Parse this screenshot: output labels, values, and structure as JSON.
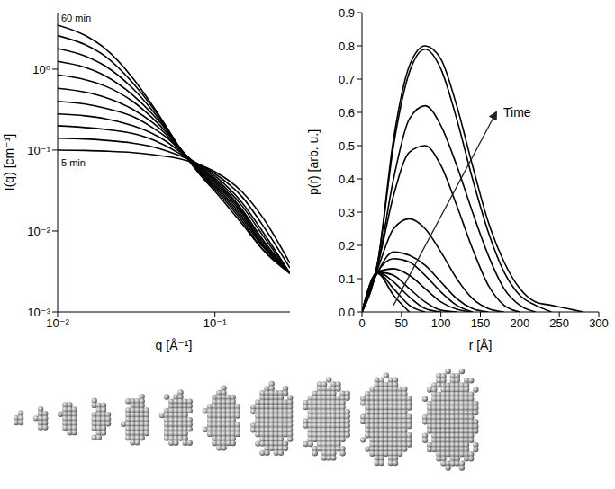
{
  "chart_data": [
    {
      "type": "line",
      "log": true,
      "x_label": "q [Å⁻¹]",
      "y_label": "I(q) [cm⁻¹]",
      "color": "#000000",
      "x": [
        0.01,
        0.015,
        0.02,
        0.03,
        0.04,
        0.05,
        0.06,
        0.08,
        0.1,
        0.15,
        0.2,
        0.3
      ],
      "xlim": [
        0.01,
        0.3
      ],
      "ylim": [
        0.001,
        5
      ],
      "xticks": [
        {
          "value": 0.01,
          "label": "10⁻²"
        },
        {
          "value": 0.1,
          "label": "10⁻¹"
        }
      ],
      "yticks": [
        {
          "value": 0.001,
          "label": "10⁻³"
        },
        {
          "value": 0.01,
          "label": "10⁻²"
        },
        {
          "value": 0.1,
          "label": "10⁻¹"
        },
        {
          "value": 1,
          "label": "10⁰"
        }
      ],
      "series": [
        {
          "name": "5 min",
          "values": [
            0.1,
            0.099,
            0.097,
            0.093,
            0.088,
            0.083,
            0.078,
            0.066,
            0.054,
            0.03,
            0.015,
            0.004
          ]
        },
        {
          "values": [
            0.14,
            0.137,
            0.132,
            0.122,
            0.11,
            0.097,
            0.085,
            0.066,
            0.051,
            0.026,
            0.012,
            0.0035
          ]
        },
        {
          "values": [
            0.2,
            0.19,
            0.18,
            0.16,
            0.135,
            0.11,
            0.09,
            0.065,
            0.048,
            0.022,
            0.01,
            0.003
          ]
        },
        {
          "values": [
            0.28,
            0.265,
            0.245,
            0.2,
            0.16,
            0.125,
            0.095,
            0.063,
            0.045,
            0.02,
            0.009,
            0.003
          ]
        },
        {
          "values": [
            0.4,
            0.37,
            0.33,
            0.26,
            0.19,
            0.14,
            0.1,
            0.062,
            0.043,
            0.018,
            0.008,
            0.003
          ]
        },
        {
          "values": [
            0.58,
            0.52,
            0.45,
            0.32,
            0.22,
            0.15,
            0.1,
            0.06,
            0.041,
            0.017,
            0.0075,
            0.003
          ]
        },
        {
          "values": [
            0.85,
            0.74,
            0.62,
            0.4,
            0.25,
            0.16,
            0.105,
            0.058,
            0.039,
            0.016,
            0.007,
            0.003
          ]
        },
        {
          "values": [
            1.25,
            1.05,
            0.83,
            0.48,
            0.28,
            0.17,
            0.105,
            0.056,
            0.037,
            0.015,
            0.0068,
            0.003
          ]
        },
        {
          "values": [
            1.8,
            1.45,
            1.1,
            0.58,
            0.31,
            0.175,
            0.105,
            0.054,
            0.035,
            0.014,
            0.0065,
            0.003
          ]
        },
        {
          "values": [
            2.6,
            2.0,
            1.45,
            0.68,
            0.34,
            0.18,
            0.105,
            0.052,
            0.033,
            0.013,
            0.006,
            0.003
          ]
        },
        {
          "name": "60 min",
          "values": [
            3.5,
            2.6,
            1.8,
            0.78,
            0.36,
            0.185,
            0.105,
            0.05,
            0.031,
            0.012,
            0.006,
            0.003
          ]
        }
      ]
    },
    {
      "type": "line",
      "x_label": "r [Å]",
      "y_label": "p(r) [arb. u.]",
      "color": "#000000",
      "x": [
        0,
        20,
        40,
        60,
        80,
        100,
        120,
        140,
        160,
        180,
        200,
        220,
        240,
        260,
        280
      ],
      "xlim": [
        0,
        300
      ],
      "ylim": [
        0,
        0.9
      ],
      "xticks": [
        0,
        50,
        100,
        150,
        200,
        250,
        300
      ],
      "yticks": [
        {
          "value": 0,
          "label": "0.0"
        },
        0.1,
        0.2,
        0.3,
        0.4,
        0.5,
        0.6,
        0.7,
        0.8,
        0.9
      ],
      "annotations": [
        {
          "text": "Time",
          "from": [
            40,
            0.02
          ],
          "to": [
            170,
            0.6
          ]
        }
      ],
      "series": [
        {
          "values": [
            0,
            0.115,
            0.05,
            0,
            null,
            null,
            null,
            null,
            null,
            null,
            null,
            null,
            null,
            null,
            null
          ]
        },
        {
          "values": [
            0,
            0.118,
            0.07,
            0.02,
            0,
            null,
            null,
            null,
            null,
            null,
            null,
            null,
            null,
            null,
            null
          ]
        },
        {
          "values": [
            0,
            0.12,
            0.09,
            0.045,
            0.01,
            0,
            null,
            null,
            null,
            null,
            null,
            null,
            null,
            null,
            null
          ]
        },
        {
          "values": [
            0,
            0.12,
            0.11,
            0.07,
            0.03,
            0.005,
            0,
            null,
            null,
            null,
            null,
            null,
            null,
            null,
            null
          ]
        },
        {
          "values": [
            0,
            0.12,
            0.13,
            0.11,
            0.07,
            0.03,
            0.008,
            0,
            null,
            null,
            null,
            null,
            null,
            null,
            null
          ]
        },
        {
          "values": [
            0,
            0.12,
            0.16,
            0.15,
            0.11,
            0.06,
            0.02,
            0,
            null,
            null,
            null,
            null,
            null,
            null,
            null
          ]
        },
        {
          "values": [
            0,
            0.12,
            0.18,
            0.17,
            0.14,
            0.09,
            0.04,
            0.01,
            0,
            null,
            null,
            null,
            null,
            null,
            null
          ]
        },
        {
          "values": [
            0,
            0.13,
            0.25,
            0.28,
            0.25,
            0.18,
            0.1,
            0.04,
            0.01,
            0,
            null,
            null,
            null,
            null,
            null
          ]
        },
        {
          "values": [
            0,
            0.14,
            0.35,
            0.48,
            0.5,
            0.44,
            0.32,
            0.19,
            0.08,
            0.02,
            0,
            null,
            null,
            null,
            null
          ]
        },
        {
          "values": [
            0,
            0.14,
            0.4,
            0.58,
            0.62,
            0.56,
            0.44,
            0.3,
            0.17,
            0.07,
            0.02,
            0,
            null,
            null,
            null
          ]
        },
        {
          "values": [
            0,
            0.15,
            0.5,
            0.72,
            0.79,
            0.73,
            0.58,
            0.4,
            0.24,
            0.12,
            0.05,
            0.02,
            0,
            null,
            null
          ]
        },
        {
          "values": [
            0,
            0.15,
            0.52,
            0.74,
            0.8,
            0.76,
            0.62,
            0.44,
            0.27,
            0.15,
            0.07,
            0.03,
            0.02,
            0.01,
            0
          ]
        }
      ]
    }
  ]
}
